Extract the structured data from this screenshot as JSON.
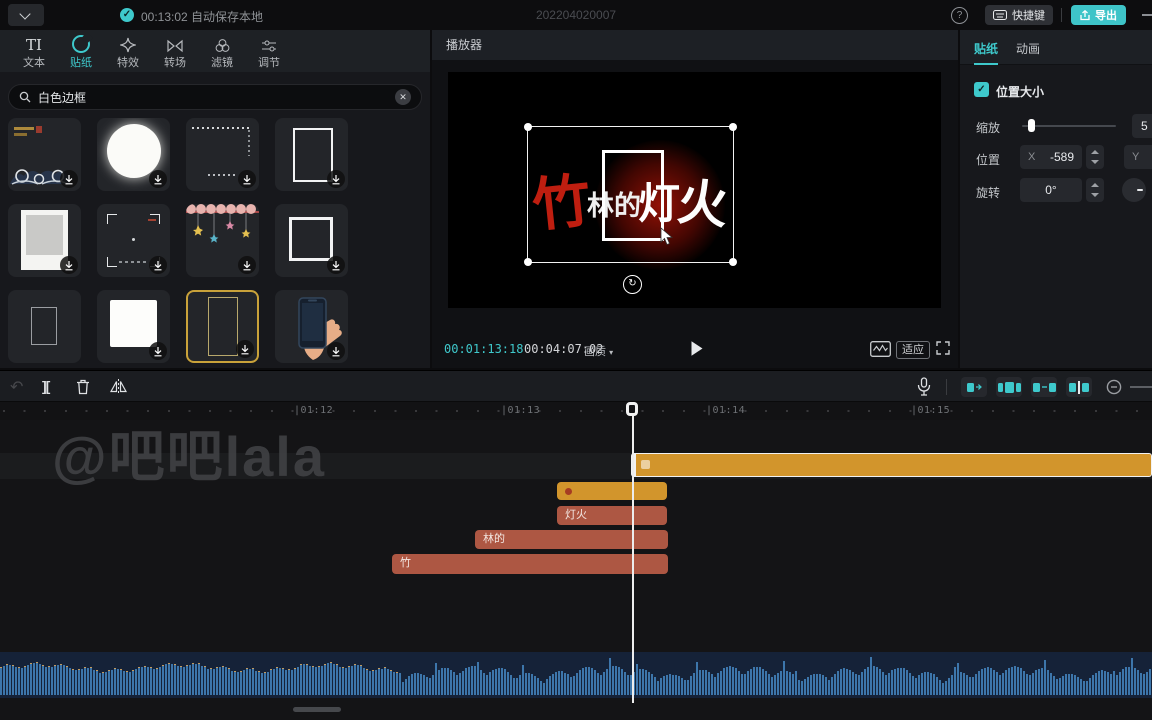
{
  "colors": {
    "accent": "#3ec9cc",
    "export_button": "#3ec4c8",
    "clip_orange": "#d2952c",
    "clip_red": "#ad5743",
    "wave_bar": "#3d76ab",
    "wave_bg": "#152238",
    "wave_tip": "#c29a5e",
    "selected_tile_border": "#c9a23a"
  },
  "topbar": {
    "autosave": "00:13:02 自动保存本地",
    "project_id": "202204020007",
    "help_glyph": "?",
    "check_glyph": "✓",
    "shortcuts_label": "快捷键",
    "export_label": "导出"
  },
  "left_panel": {
    "tabs": [
      {
        "label": "文本"
      },
      {
        "label": "贴纸"
      },
      {
        "label": "特效"
      },
      {
        "label": "转场"
      },
      {
        "label": "滤镜"
      },
      {
        "label": "调节"
      }
    ],
    "active_tab": "贴纸",
    "search_value": "白色边框",
    "clear_glyph": "✕",
    "stickers": [
      {
        "name": "wave-art",
        "selected": false
      },
      {
        "name": "moon-circle",
        "selected": false
      },
      {
        "name": "dotted-border",
        "selected": false
      },
      {
        "name": "rect-frame",
        "selected": false
      },
      {
        "name": "polaroid-frame",
        "selected": false
      },
      {
        "name": "corner-marks-frame",
        "selected": false
      },
      {
        "name": "star-garland",
        "selected": false
      },
      {
        "name": "square-frame",
        "selected": false
      },
      {
        "name": "thin-rect-frame",
        "selected": false
      },
      {
        "name": "white-square",
        "selected": false
      },
      {
        "name": "tall-rect-frame",
        "selected": true
      },
      {
        "name": "phone-in-hand",
        "selected": false
      }
    ]
  },
  "player": {
    "title": "播放器",
    "current_time": "00:01:13:18",
    "duration": "00:04:07:02",
    "quality_label": "画质",
    "fit_label": "适应",
    "overlay": {
      "char_zhu": "竹",
      "chars_linde": "林的",
      "char_deng": "灯",
      "char_huo": "火"
    },
    "rotate_glyph": "↻"
  },
  "right_panel": {
    "tab_sticker": "贴纸",
    "tab_animation": "动画",
    "section_title": "位置大小",
    "check_glyph": "✓",
    "scale_label": "缩放",
    "scale_value_visible": "5",
    "position_label": "位置",
    "x_label": "X",
    "x_value": "-589",
    "y_label": "Y",
    "rotation_label": "旋转",
    "rotation_value": "0°"
  },
  "timeline": {
    "undo_glyph": "↶",
    "split_glyph": "][",
    "ruler": [
      "|01:12",
      "|01:13",
      "|01:14",
      "|01:15"
    ],
    "clip_labels": {
      "lantern": "灯火",
      "forest": "林的",
      "bamboo": "竹"
    },
    "watermark": "@吧吧lala"
  }
}
